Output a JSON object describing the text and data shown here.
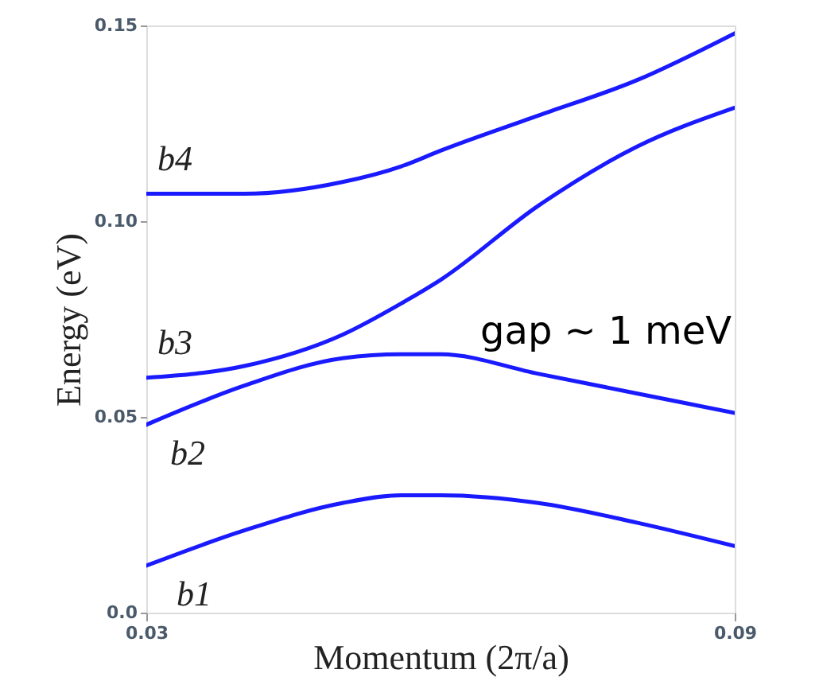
{
  "chart_data": {
    "type": "line",
    "xlabel": "Momentum (2π/a)",
    "ylabel": "Energy (eV)",
    "x": [
      0.03,
      0.04,
      0.05,
      0.056,
      0.06,
      0.07,
      0.08,
      0.09
    ],
    "series": [
      {
        "name": "b1",
        "color": "#1a1aff",
        "values": [
          0.012,
          0.021,
          0.028,
          0.03,
          0.03,
          0.028,
          0.023,
          0.017
        ]
      },
      {
        "name": "b2",
        "color": "#1a1aff",
        "values": [
          0.048,
          0.058,
          0.065,
          0.066,
          0.066,
          0.061,
          0.056,
          0.051
        ]
      },
      {
        "name": "b3",
        "color": "#1a1aff",
        "values": [
          0.06,
          0.063,
          0.071,
          0.079,
          0.085,
          0.104,
          0.119,
          0.129
        ]
      },
      {
        "name": "b4",
        "color": "#1a1aff",
        "values": [
          0.107,
          0.107,
          0.11,
          0.114,
          0.118,
          0.127,
          0.136,
          0.148
        ]
      }
    ],
    "xlim": [
      0.03,
      0.09
    ],
    "xticks": [
      {
        "value": 0.03,
        "label": "0.03"
      },
      {
        "value": 0.09,
        "label": "0.09"
      }
    ],
    "ylim": [
      0,
      0.15
    ],
    "yticks": [
      {
        "value": 0,
        "label": "0.0"
      },
      0.05,
      {
        "value": 0.1,
        "label": "0.10"
      },
      0.15
    ],
    "grid": false,
    "legend": false,
    "line_style": "solid",
    "marker": "none",
    "annotations": [
      "gap ~ 1 meV"
    ]
  }
}
